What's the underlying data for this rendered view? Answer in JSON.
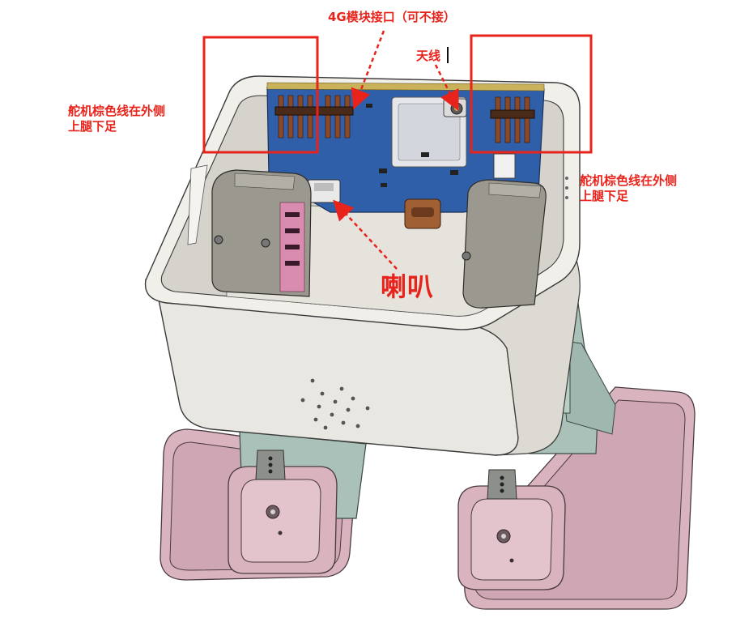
{
  "labels": {
    "module_4g": "4G模块接口（可不接）",
    "antenna": "天线",
    "servo_note_left_line1": "舵机棕色线在外侧",
    "servo_note_left_line2": "上腿下足",
    "servo_note_right_line1": "舵机棕色线在外侧",
    "servo_note_right_line2": "上腿下足",
    "speaker": "喇叭"
  },
  "colors": {
    "annotation": "#e8231b",
    "pcb": "#2f5fa8",
    "shell": "#eceae4",
    "feet": "#d9b2bd",
    "legs": "#a9c1b8",
    "servo": "#9b9890",
    "header_pins": "#8a4a2a"
  }
}
